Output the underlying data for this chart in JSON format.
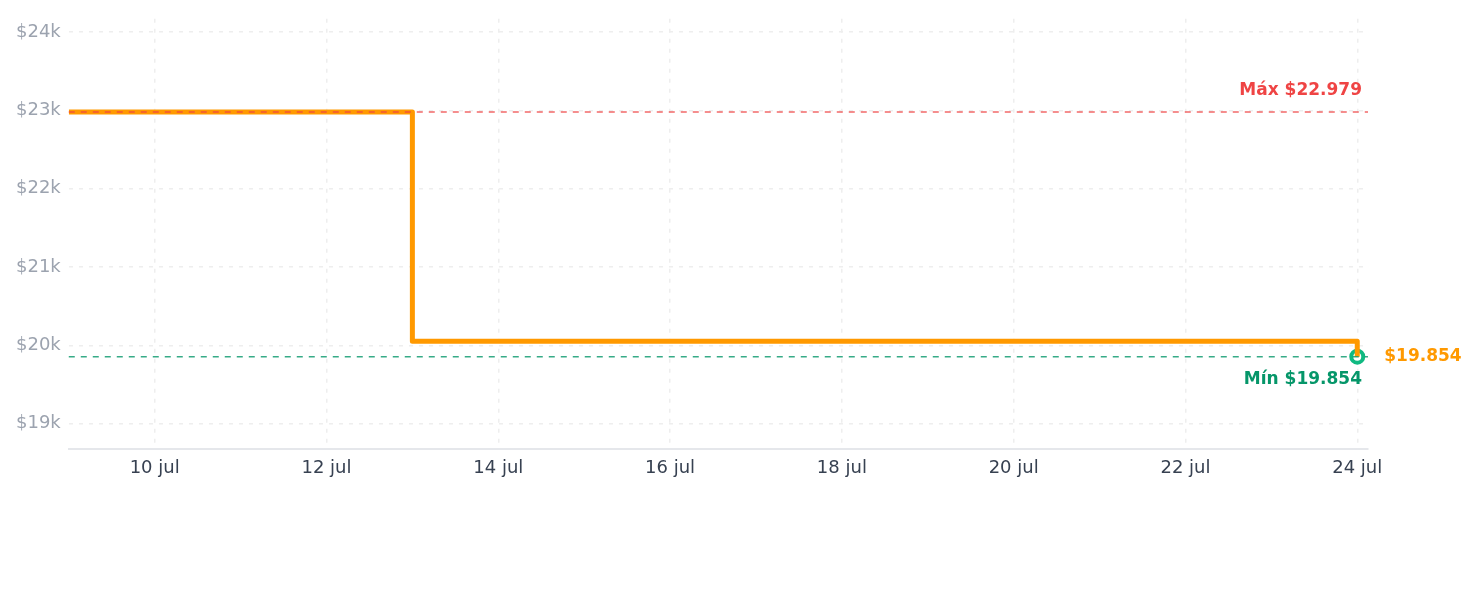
{
  "chart_data": {
    "type": "step",
    "x": [
      "--07-09",
      "--07-13",
      "--07-24"
    ],
    "series": [
      {
        "color": "#ff9900",
        "values": [
          22979,
          20050,
          19854
        ],
        "value_labels": [
          null,
          null,
          "$19.854"
        ],
        "marker": "none"
      },
      {
        "type": "scatter",
        "color": "#10b981",
        "x": [
          "--07-24"
        ],
        "values": [
          19854
        ],
        "marker": "circle"
      }
    ],
    "xlim": [
      "--07-09",
      "--07-24T03:00"
    ],
    "xticks": [
      {
        "value": "--07-10",
        "label": "10 jul"
      },
      {
        "value": "--07-12",
        "label": "12 jul"
      },
      {
        "value": "--07-14",
        "label": "14 jul"
      },
      {
        "value": "--07-16",
        "label": "16 jul"
      },
      {
        "value": "--07-18",
        "label": "18 jul"
      },
      {
        "value": "--07-20",
        "label": "20 jul"
      },
      {
        "value": "--07-22",
        "label": "22 jul"
      },
      {
        "value": "--07-24",
        "label": "24 jul"
      }
    ],
    "ylim": [
      18670,
      24170
    ],
    "yticks": [
      {
        "value": 19000,
        "label": "$19k"
      },
      {
        "value": 20000,
        "label": "$20k"
      },
      {
        "value": 21000,
        "label": "$21k"
      },
      {
        "value": 22000,
        "label": "$22k"
      },
      {
        "value": 23000,
        "label": "$23k"
      },
      {
        "value": 24000,
        "label": "$24k"
      }
    ],
    "ref_lines": [
      {
        "axis": "y",
        "value": 22979,
        "label": "Máx $22.979",
        "color": "#ef4444",
        "line_style": "dashed"
      },
      {
        "axis": "y",
        "value": 19854,
        "label": "Mín $19.854",
        "color": "#059669",
        "line_style": "dashed"
      }
    ],
    "grid": true,
    "legend": false,
    "line_style": "solid"
  }
}
